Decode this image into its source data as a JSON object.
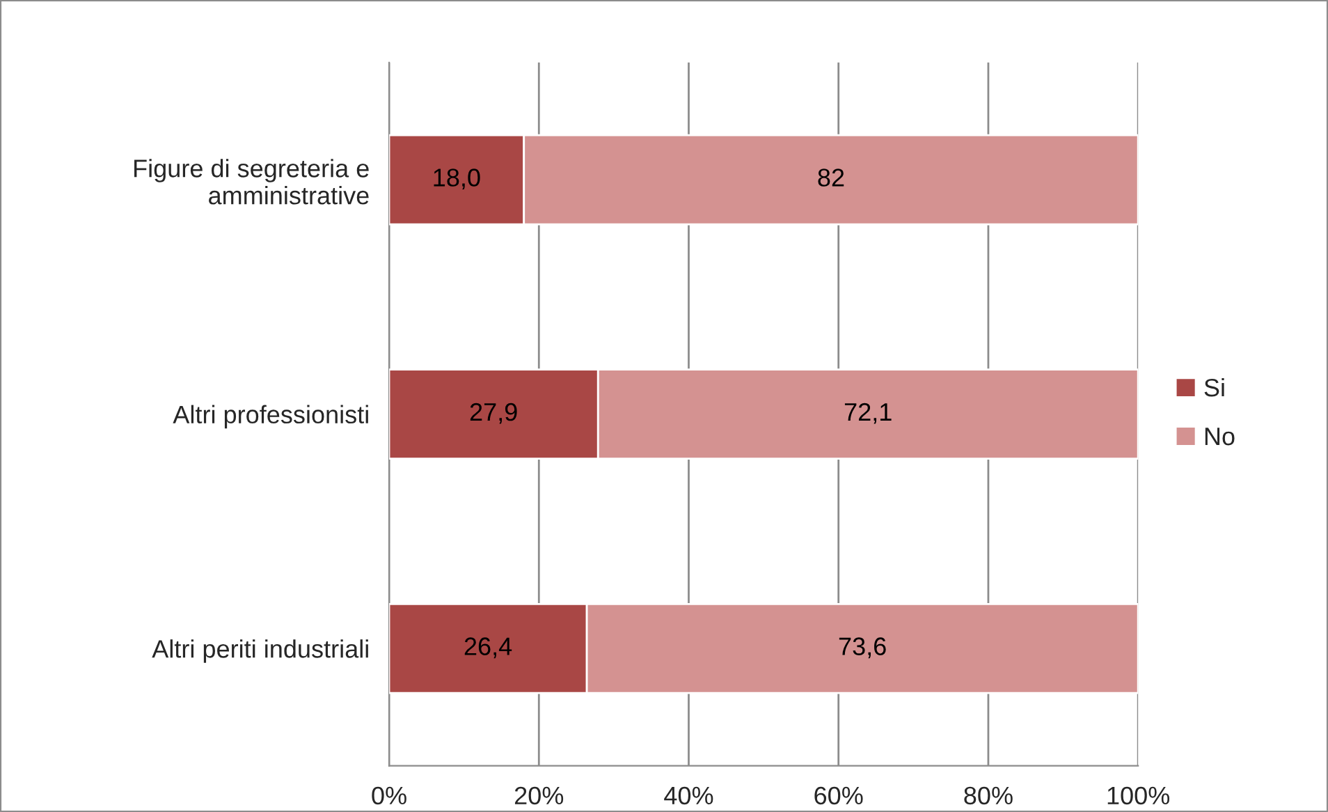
{
  "chart_data": {
    "type": "bar",
    "orientation": "horizontal",
    "stacked": true,
    "categories": [
      "Figure di segreteria e\namministrative",
      "Altri professionisti",
      "Altri periti industriali"
    ],
    "series": [
      {
        "name": "Si",
        "color": "#a94745",
        "values": [
          18.0,
          27.9,
          26.4
        ],
        "value_labels": [
          "18,0",
          "27,9",
          "26,4"
        ]
      },
      {
        "name": "No",
        "color": "#d49291",
        "values": [
          82,
          72.1,
          73.6
        ],
        "value_labels": [
          "82",
          "72,1",
          "73,6"
        ]
      }
    ],
    "xlim": [
      0,
      100
    ],
    "xticks": [
      {
        "value": 0,
        "label": "0%"
      },
      {
        "value": 20,
        "label": "20%"
      },
      {
        "value": 40,
        "label": "40%"
      },
      {
        "value": 60,
        "label": "60%"
      },
      {
        "value": 80,
        "label": "80%"
      },
      {
        "value": 100,
        "label": "100%"
      }
    ],
    "grid": "x",
    "legend": "right"
  }
}
